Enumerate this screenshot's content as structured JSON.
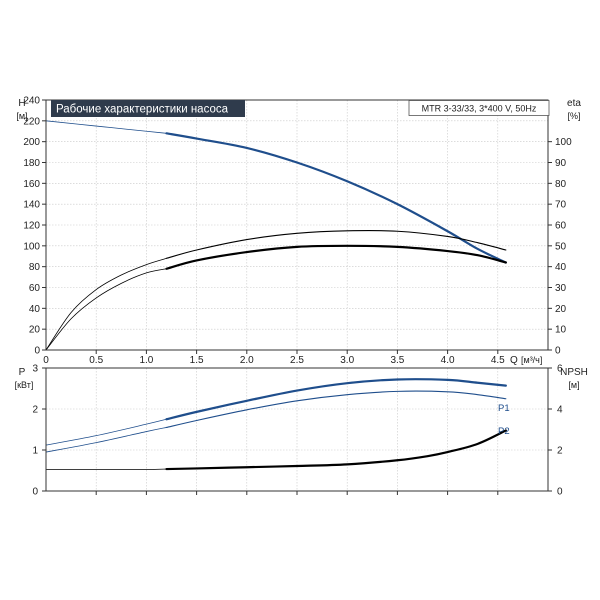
{
  "chart_data": [
    {
      "type": "line",
      "title": "Рабочие характеристики насоса",
      "model_label": "MTR 3-33/33, 3*400 V, 50Hz",
      "xlabel": "Q",
      "xunit": "[м³/ч]",
      "ylabel": "H",
      "yunit": "[м]",
      "y2label": "eta",
      "y2unit": "[%]",
      "xlim": [
        0,
        5.0
      ],
      "ylim": [
        0,
        240
      ],
      "y2lim": [
        0,
        120
      ],
      "xticks": [
        "0",
        "0.5",
        "1.0",
        "1.5",
        "2.0",
        "2.5",
        "3.0",
        "3.5",
        "4.0",
        "4.5"
      ],
      "yticks": [
        "0",
        "20",
        "40",
        "60",
        "80",
        "100",
        "120",
        "140",
        "160",
        "180",
        "200",
        "220",
        "240"
      ],
      "y2ticks": [
        "0",
        "10",
        "20",
        "30",
        "40",
        "50",
        "60",
        "70",
        "80",
        "90",
        "100"
      ],
      "colors": {
        "head": "#1f4e8c",
        "eta": "#000000"
      },
      "series": [
        {
          "name": "",
          "axis": "left",
          "thin_range": [
            0,
            1.2
          ],
          "x": [
            0,
            0.5,
            1.0,
            1.2,
            1.5,
            2.0,
            2.5,
            3.0,
            3.5,
            4.0,
            4.3,
            4.58
          ],
          "y": [
            220,
            215,
            210,
            208,
            203,
            194,
            180,
            162,
            140,
            114,
            97,
            84
          ]
        },
        {
          "name": "",
          "axis": "right",
          "thin_range": [
            0,
            1.2
          ],
          "x": [
            0,
            0.25,
            0.5,
            0.75,
            1.0,
            1.2,
            1.5,
            2.0,
            2.5,
            3.0,
            3.5,
            4.0,
            4.3,
            4.58
          ],
          "y": [
            0,
            15,
            25,
            32,
            37,
            39,
            43,
            47,
            49.5,
            50,
            49.5,
            47.5,
            45.5,
            42
          ]
        },
        {
          "name": "",
          "axis": "right",
          "thin_range": [
            0,
            1.2
          ],
          "x": [
            0,
            0.25,
            0.5,
            0.75,
            1.0,
            1.2,
            1.5,
            2.0,
            2.5,
            3.0,
            3.5,
            4.0,
            4.3,
            4.58
          ],
          "y": [
            0,
            18,
            29,
            36,
            41,
            44,
            48,
            53,
            56,
            57.2,
            57,
            54.5,
            51.5,
            48
          ]
        }
      ]
    },
    {
      "type": "line",
      "xlim": [
        0,
        5.0
      ],
      "ylabel": "P",
      "yunit": "[кВт]",
      "y2label": "NPSH",
      "y2unit": "[м]",
      "ylim": [
        0,
        3
      ],
      "y2lim": [
        0,
        6
      ],
      "yticks": [
        "0",
        "1",
        "2",
        "3"
      ],
      "y2ticks": [
        "0",
        "2",
        "4",
        "6"
      ],
      "colors": {
        "power": "#1f4e8c",
        "npsh": "#000000"
      },
      "series": [
        {
          "name": "P1",
          "axis": "left",
          "thin_range": [
            0,
            1.2
          ],
          "x": [
            0,
            0.5,
            1.0,
            1.2,
            1.5,
            2.0,
            2.5,
            3.0,
            3.5,
            4.0,
            4.3,
            4.58
          ],
          "y": [
            1.12,
            1.35,
            1.63,
            1.75,
            1.93,
            2.2,
            2.45,
            2.63,
            2.72,
            2.71,
            2.64,
            2.57
          ]
        },
        {
          "name": "P2",
          "axis": "left",
          "thin_range": [
            0,
            1.2
          ],
          "x": [
            0,
            0.5,
            1.0,
            1.2,
            1.5,
            2.0,
            2.5,
            3.0,
            3.5,
            4.0,
            4.3,
            4.58
          ],
          "y": [
            0.95,
            1.18,
            1.45,
            1.55,
            1.72,
            1.98,
            2.2,
            2.35,
            2.43,
            2.42,
            2.35,
            2.25
          ]
        },
        {
          "name": "",
          "axis": "right",
          "thin_range": [
            0,
            1.2
          ],
          "x": [
            0,
            0.5,
            1.0,
            1.2,
            1.5,
            2.0,
            2.5,
            3.0,
            3.5,
            3.8,
            4.0,
            4.3,
            4.58
          ],
          "y": [
            1.05,
            1.05,
            1.05,
            1.07,
            1.1,
            1.16,
            1.22,
            1.3,
            1.5,
            1.7,
            1.9,
            2.3,
            2.95
          ]
        }
      ]
    }
  ]
}
